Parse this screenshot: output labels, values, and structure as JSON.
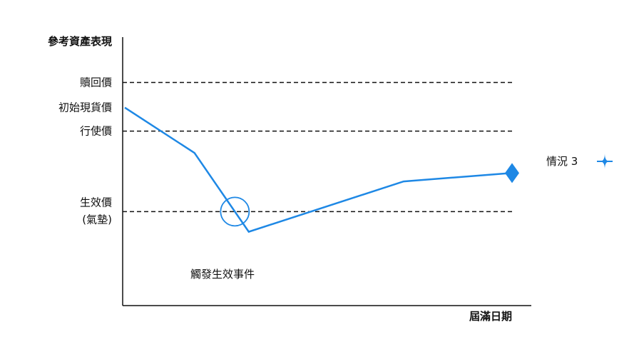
{
  "chart_data": {
    "type": "line",
    "ylabel": "參考資產表現",
    "xlabel": "屆滿日期",
    "levels": [
      {
        "key": "call",
        "label": "贖回價",
        "value": 133,
        "dashed": true
      },
      {
        "key": "initial",
        "label": "初始現貨價",
        "value": 118,
        "dashed": false
      },
      {
        "key": "strike",
        "label": "行使價",
        "value": 104,
        "dashed": true
      },
      {
        "key": "knockin",
        "label": "生效價",
        "sublabel": "(氣墊)",
        "value": 56,
        "dashed": true
      }
    ],
    "path_x": [
      0,
      0.18,
      0.32,
      0.72,
      1.0
    ],
    "path_y": [
      118,
      91,
      44,
      74,
      79
    ],
    "knockin_event": {
      "label": "觸發生效事件"
    },
    "scenario": {
      "label": "情況 3"
    },
    "xlim": [
      0,
      1
    ],
    "ylim": [
      0,
      160
    ]
  },
  "colors": {
    "path": "#1e88e5",
    "axis": "#111111",
    "dash": "#111111"
  }
}
